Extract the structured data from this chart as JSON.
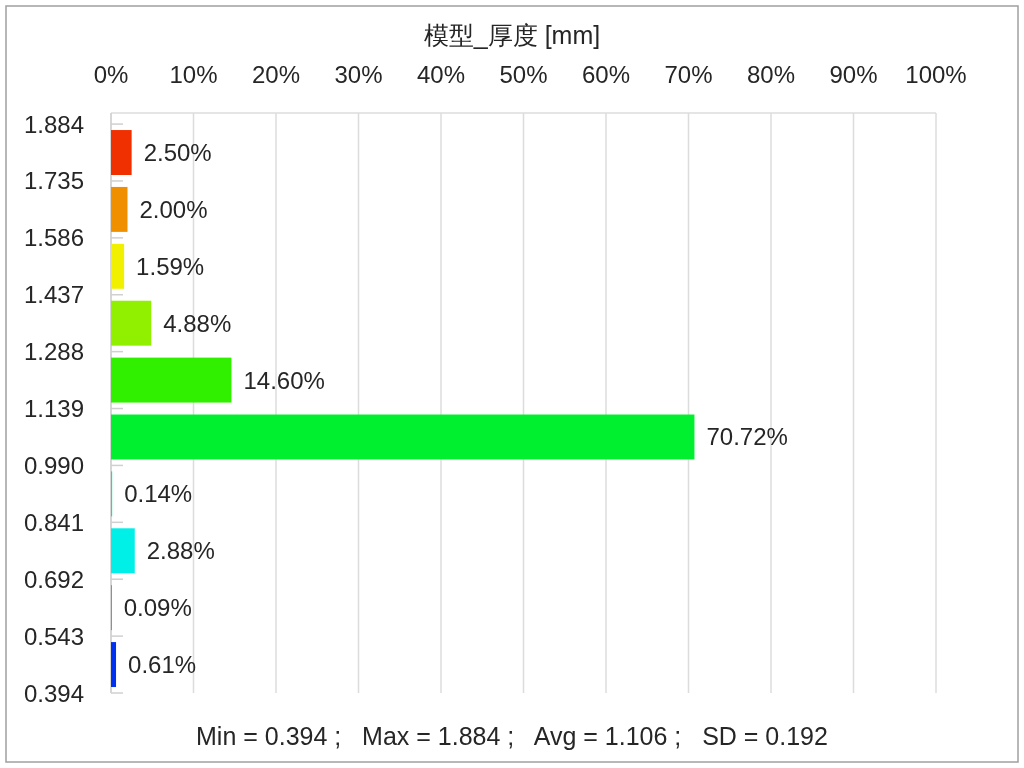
{
  "chart_data": {
    "type": "histogram",
    "orientation": "horizontal",
    "title": "模型_厚度 [mm]",
    "bins": [
      0.394,
      0.543,
      0.692,
      0.841,
      0.99,
      1.139,
      1.288,
      1.437,
      1.586,
      1.735,
      1.884
    ],
    "values": [
      0.61,
      0.09,
      2.88,
      0.14,
      70.72,
      14.6,
      4.88,
      1.59,
      2.0,
      2.5
    ],
    "colors": [
      "#0030f0",
      "#3090f0",
      "#00f0e8",
      "#00f090",
      "#00f030",
      "#30f000",
      "#90f000",
      "#f0f000",
      "#f09000",
      "#f03000"
    ],
    "value_labels": [
      "0.61%",
      "0.09%",
      "2.88%",
      "0.14%",
      "70.72%",
      "14.60%",
      "4.88%",
      "1.59%",
      "2.00%",
      "2.50%"
    ],
    "xlim": [
      0,
      100
    ],
    "xticks": [
      {
        "value": 0,
        "label": "0%"
      },
      {
        "value": 10,
        "label": "10%"
      },
      {
        "value": 20,
        "label": "20%"
      },
      {
        "value": 30,
        "label": "30%"
      },
      {
        "value": 40,
        "label": "40%"
      },
      {
        "value": 50,
        "label": "50%"
      },
      {
        "value": 60,
        "label": "60%"
      },
      {
        "value": 70,
        "label": "70%"
      },
      {
        "value": 80,
        "label": "80%"
      },
      {
        "value": 90,
        "label": "90%"
      },
      {
        "value": 100,
        "label": "100%"
      }
    ],
    "ylim": [
      0.394,
      1.913
    ],
    "yticks": [
      0.394,
      0.543,
      0.692,
      0.841,
      {
        "value": 0.99,
        "label": "0.990"
      },
      1.139,
      1.288,
      1.437,
      1.586,
      1.735,
      1.884
    ],
    "grid": "x",
    "annotations": [
      "Min = 0.394 ;   Max = 1.884 ;   Avg = 1.106 ;   SD = 0.192"
    ]
  }
}
